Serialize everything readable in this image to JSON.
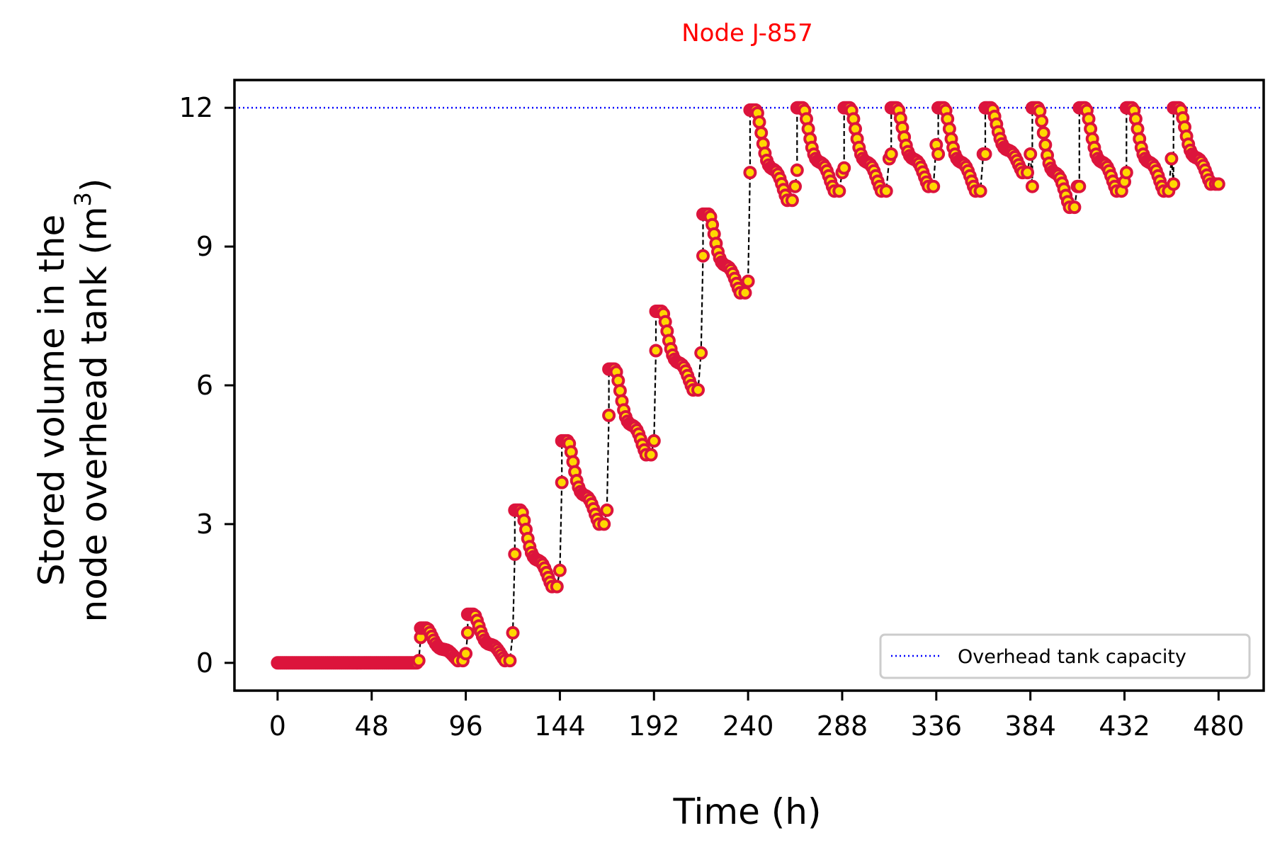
{
  "chart_data": {
    "type": "line",
    "title": "Node J-857",
    "xlabel": "Time (h)",
    "ylabel_line1": "Stored volume in the",
    "ylabel_line2": "node overhead tank (m",
    "ylabel_sup": "3",
    "ylabel_close": ")",
    "xlim": [
      -22,
      503
    ],
    "ylim": [
      -0.6,
      12.6
    ],
    "xticks": [
      0,
      48,
      96,
      144,
      192,
      240,
      288,
      336,
      384,
      432,
      480
    ],
    "yticks": [
      0,
      3,
      6,
      9,
      12
    ],
    "grid": false,
    "legend_position": "lower-right",
    "capacity": {
      "name": "Overhead tank capacity",
      "value": 12,
      "color": "#0000ff",
      "style": "dotted"
    },
    "series_style": {
      "line_color": "#000000",
      "line_style": "dashed",
      "marker_edge": "#dc143c",
      "marker_face": "#ffd700"
    },
    "cycles": [
      {
        "t0": 0,
        "start": 0,
        "peak": 0,
        "min": 0,
        "jump": 0
      },
      {
        "t0": 24,
        "start": 0,
        "peak": 0,
        "min": 0,
        "jump": 0
      },
      {
        "t0": 48,
        "start": 0,
        "peak": 0,
        "min": 0,
        "jump": 0
      },
      {
        "t0": 72,
        "start": 0.05,
        "peak": 0.75,
        "min": 0.05,
        "jump": 0.55
      },
      {
        "t0": 96,
        "start": 0.2,
        "peak": 1.05,
        "min": 0.05,
        "jump": 0.65
      },
      {
        "t0": 120,
        "start": 0.65,
        "peak": 3.3,
        "min": 1.65,
        "jump": 2.35
      },
      {
        "t0": 144,
        "start": 2.0,
        "peak": 4.8,
        "min": 3.0,
        "jump": 3.9
      },
      {
        "t0": 168,
        "start": 3.3,
        "peak": 6.35,
        "min": 4.5,
        "jump": 5.35
      },
      {
        "t0": 192,
        "start": 4.8,
        "peak": 7.6,
        "min": 5.9,
        "jump": 6.75
      },
      {
        "t0": 216,
        "start": 6.7,
        "peak": 9.7,
        "min": 8.0,
        "jump": 8.8
      },
      {
        "t0": 240,
        "start": 8.25,
        "peak": 11.95,
        "min": 10.0,
        "jump": 10.6
      },
      {
        "t0": 264,
        "start": 10.3,
        "peak": 12.0,
        "min": 10.2,
        "jump": 10.65
      },
      {
        "t0": 288,
        "start": 10.6,
        "peak": 12.0,
        "min": 10.2,
        "jump": 10.7
      },
      {
        "t0": 312,
        "start": 10.9,
        "peak": 12.0,
        "min": 10.3,
        "jump": 11.0
      },
      {
        "t0": 336,
        "start": 11.2,
        "peak": 12.0,
        "min": 10.2,
        "jump": 11.0
      },
      {
        "t0": 360,
        "start": 11.0,
        "peak": 12.0,
        "min": 10.6,
        "jump": 11.0
      },
      {
        "t0": 384,
        "start": 11.0,
        "peak": 12.0,
        "min": 9.85,
        "jump": 10.3
      },
      {
        "t0": 408,
        "start": 10.3,
        "peak": 12.0,
        "min": 10.2,
        "jump": 10.3
      },
      {
        "t0": 432,
        "start": 10.4,
        "peak": 12.0,
        "min": 10.2,
        "jump": 10.6
      },
      {
        "t0": 456,
        "start": 10.9,
        "peak": 12.0,
        "min": 10.35,
        "jump": 10.35
      }
    ]
  }
}
